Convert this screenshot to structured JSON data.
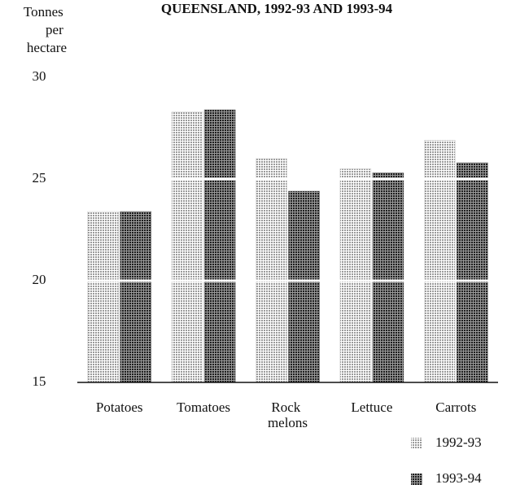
{
  "chart_data": {
    "type": "bar",
    "title": "QUEENSLAND, 1992-93 AND 1993-94",
    "y_label": "Tonnes per hectare",
    "categories": [
      "Potatoes",
      "Tomatoes",
      "Rock melons",
      "Lettuce",
      "Carrots"
    ],
    "series": [
      {
        "name": "1992-93",
        "color": "#c8c8c8",
        "values": [
          23.4,
          28.3,
          26.0,
          25.5,
          26.9
        ]
      },
      {
        "name": "1993-94",
        "color": "#505050",
        "values": [
          23.4,
          28.4,
          24.4,
          25.3,
          25.8
        ]
      }
    ],
    "ylim": [
      15,
      30
    ],
    "yticks": [
      15,
      20,
      25,
      30
    ],
    "grid": true
  }
}
